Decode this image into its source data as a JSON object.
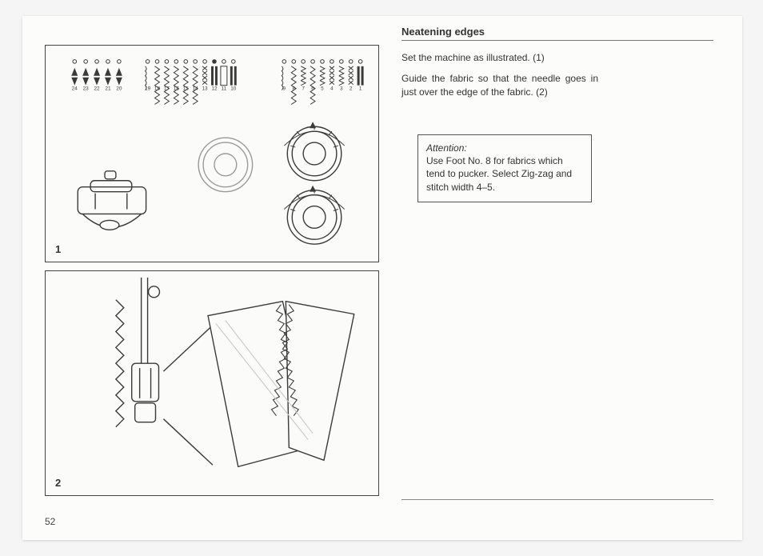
{
  "heading": "Neatening edges",
  "para1": "Set the machine as illustrated. (1)",
  "para2": "Guide the fabric so that the needle goes in just over the edge of the fabric. (2)",
  "attention": {
    "title": "Attention:",
    "body": "Use Foot No. 8 for fabrics which tend to pucker. Select Zig-zag and stitch width 4–5."
  },
  "figure1_label": "1",
  "figure2_label": "2",
  "page_number": "52",
  "stitch_row1_numbers": [
    "24",
    "23",
    "22",
    "21",
    "20"
  ],
  "stitch_row2_numbers": [
    "19",
    "18",
    "17",
    "16",
    "15",
    "14",
    "13",
    "12",
    "11",
    "10"
  ],
  "stitch_row3_numbers": [
    "9",
    "8",
    "7",
    "6",
    "5",
    "4",
    "3",
    "2",
    "1"
  ],
  "colors": {
    "stroke": "#3a3a3a",
    "light": "#9a9a9a",
    "bg": "#fbfbfa"
  }
}
